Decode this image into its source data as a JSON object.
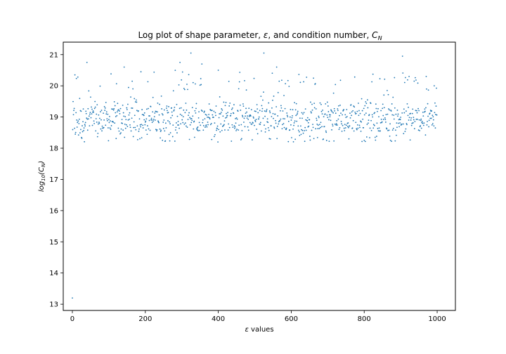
{
  "chart_data": {
    "type": "scatter",
    "title": "Log plot of shape parameter, ε, and condition number, C_N",
    "title_parts": {
      "prefix": "Log plot of shape parameter, ",
      "epsilon": "ε",
      "middle": ", and condition number, ",
      "C": "C",
      "N": "N"
    },
    "xlabel": "ε values",
    "xlabel_parts": {
      "epsilon": "ε",
      "rest": " values"
    },
    "ylabel": "log10(CN)",
    "ylabel_parts": {
      "log": "log",
      "sub10": "10",
      "open": "(C",
      "subN": "N",
      "close": ")"
    },
    "xlim": [
      -25,
      1050
    ],
    "ylim": [
      12.8,
      21.4
    ],
    "xticks": [
      0,
      200,
      400,
      600,
      800,
      1000
    ],
    "xtick_labels": [
      "0",
      "200",
      "400",
      "600",
      "800",
      "1000"
    ],
    "yticks": [
      13,
      14,
      15,
      16,
      17,
      18,
      19,
      20,
      21
    ],
    "ytick_labels": [
      "13",
      "14",
      "15",
      "16",
      "17",
      "18",
      "19",
      "20",
      "21"
    ],
    "point_color": "#1f77b4",
    "grid": false,
    "n_points": 1000,
    "notable_points": [
      {
        "x": 0,
        "y": 13.2
      },
      {
        "x": 7,
        "y": 20.35
      },
      {
        "x": 40,
        "y": 20.75
      },
      {
        "x": 142,
        "y": 20.6
      },
      {
        "x": 188,
        "y": 20.45
      },
      {
        "x": 295,
        "y": 20.75
      },
      {
        "x": 325,
        "y": 21.05
      },
      {
        "x": 355,
        "y": 20.7
      },
      {
        "x": 400,
        "y": 20.5
      },
      {
        "x": 525,
        "y": 21.05
      },
      {
        "x": 560,
        "y": 20.6
      },
      {
        "x": 905,
        "y": 20.95
      },
      {
        "x": 923,
        "y": 20.3
      },
      {
        "x": 970,
        "y": 20.3
      }
    ],
    "bulk_band": {
      "low": 18.2,
      "high": 19.9,
      "center": 18.85
    }
  }
}
